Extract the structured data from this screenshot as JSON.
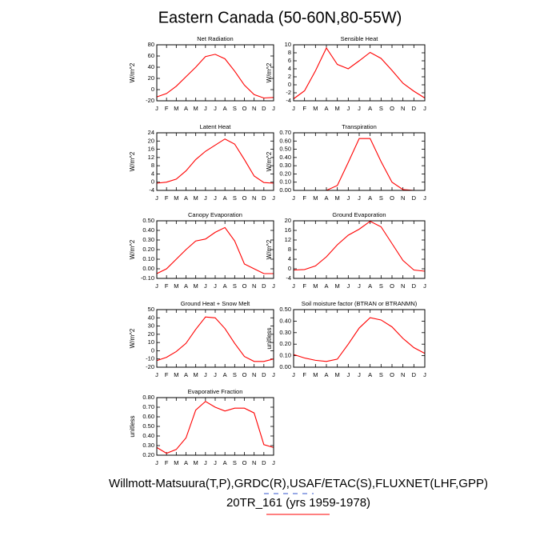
{
  "title": "Eastern Canada (50-60N,80-55W)",
  "footer": {
    "sources": "Willmott-Matsuura(T,P),GRDC(R),USAF/ETAC(S),FLUXNET(LHF,GPP)",
    "run": "20TR_161 (yrs 1959-1978)"
  },
  "chart_data": [
    {
      "type": "line",
      "title": "Net Radiation",
      "y_label": "W/m^2",
      "categories": [
        "J",
        "F",
        "M",
        "A",
        "M",
        "J",
        "J",
        "A",
        "S",
        "O",
        "N",
        "D",
        "J"
      ],
      "series": [
        {
          "color": "#ff0000",
          "values": [
            -13,
            -7,
            6,
            23,
            40,
            59,
            63,
            55,
            33,
            8,
            -9,
            -15,
            -14
          ]
        }
      ],
      "ylim": [
        -20,
        80
      ],
      "yticks": [
        -20,
        0,
        20,
        40,
        60,
        80
      ]
    },
    {
      "type": "line",
      "title": "Sensible Heat",
      "y_label": "W/m^2",
      "categories": [
        "J",
        "F",
        "M",
        "A",
        "M",
        "J",
        "J",
        "A",
        "S",
        "O",
        "N",
        "D",
        "J"
      ],
      "series": [
        {
          "color": "#ff0000",
          "values": [
            -3.5,
            -1.5,
            3.5,
            9.2,
            5.1,
            4.0,
            6.0,
            8.1,
            6.6,
            3.6,
            0.4,
            -1.6,
            -3.3
          ]
        }
      ],
      "ylim": [
        -4,
        10
      ],
      "yticks": [
        -4,
        -2,
        0,
        2,
        4,
        6,
        8,
        10
      ]
    },
    {
      "type": "line",
      "title": "Latent Heat",
      "y_label": "W/m^2",
      "categories": [
        "J",
        "F",
        "M",
        "A",
        "M",
        "J",
        "J",
        "A",
        "S",
        "O",
        "N",
        "D",
        "J"
      ],
      "series": [
        {
          "color": "#ff0000",
          "values": [
            -0.5,
            0,
            1.5,
            5.5,
            11,
            15,
            18,
            21,
            18.5,
            11,
            3,
            -0.2,
            -0.5
          ]
        }
      ],
      "ylim": [
        -4,
        24
      ],
      "yticks": [
        -4,
        0,
        4,
        8,
        12,
        16,
        20,
        24
      ]
    },
    {
      "type": "line",
      "title": "Transpiration",
      "y_label": "W/m^2",
      "categories": [
        "J",
        "F",
        "M",
        "A",
        "M",
        "J",
        "J",
        "A",
        "S",
        "O",
        "N",
        "D",
        "J"
      ],
      "series": [
        {
          "color": "#ff0000",
          "values": [
            0,
            0,
            0,
            0,
            0.06,
            0.34,
            0.63,
            0.63,
            0.35,
            0.1,
            0.01,
            0,
            0
          ]
        }
      ],
      "ylim": [
        0,
        0.7
      ],
      "yticks": [
        {
          "value": 0,
          "label": "0.00"
        },
        {
          "value": 0.1,
          "label": "0.10"
        },
        {
          "value": 0.2,
          "label": "0.20"
        },
        {
          "value": 0.3,
          "label": "0.30"
        },
        {
          "value": 0.4,
          "label": "0.40"
        },
        {
          "value": 0.5,
          "label": "0.50"
        },
        {
          "value": 0.6,
          "label": "0.60"
        },
        {
          "value": 0.7,
          "label": "0.70"
        }
      ]
    },
    {
      "type": "line",
      "title": "Canopy Evaporation",
      "y_label": "W/m^2",
      "categories": [
        "J",
        "F",
        "M",
        "A",
        "M",
        "J",
        "J",
        "A",
        "S",
        "O",
        "N",
        "D",
        "J"
      ],
      "series": [
        {
          "color": "#ff0000",
          "values": [
            -0.05,
            0.0,
            0.1,
            0.2,
            0.29,
            0.31,
            0.38,
            0.43,
            0.29,
            0.05,
            0.0,
            -0.05,
            -0.05
          ]
        }
      ],
      "ylim": [
        -0.1,
        0.5
      ],
      "yticks": [
        {
          "value": -0.1,
          "label": "-0.10"
        },
        {
          "value": 0,
          "label": "0.00"
        },
        {
          "value": 0.1,
          "label": "0.10"
        },
        {
          "value": 0.2,
          "label": "0.20"
        },
        {
          "value": 0.3,
          "label": "0.30"
        },
        {
          "value": 0.4,
          "label": "0.40"
        },
        {
          "value": 0.5,
          "label": "0.50"
        }
      ]
    },
    {
      "type": "line",
      "title": "Ground Evaporation",
      "y_label": "W/m^2",
      "categories": [
        "J",
        "F",
        "M",
        "A",
        "M",
        "J",
        "J",
        "A",
        "S",
        "O",
        "N",
        "D",
        "J"
      ],
      "series": [
        {
          "color": "#ff0000",
          "values": [
            -0.5,
            -0.3,
            1.2,
            5,
            10,
            14,
            16.5,
            19.8,
            17.5,
            10.5,
            3.5,
            -0.5,
            -1
          ]
        }
      ],
      "ylim": [
        -4,
        20
      ],
      "yticks": [
        -4,
        0,
        4,
        8,
        12,
        16,
        20
      ]
    },
    {
      "type": "line",
      "title": "Ground Heat + Snow Melt",
      "y_label": "W/m^2",
      "categories": [
        "J",
        "F",
        "M",
        "A",
        "M",
        "J",
        "J",
        "A",
        "S",
        "O",
        "N",
        "D",
        "J"
      ],
      "series": [
        {
          "color": "#ff0000",
          "values": [
            -12,
            -8,
            -1,
            9,
            26,
            41,
            40,
            27,
            9,
            -7,
            -13,
            -13,
            -10
          ]
        }
      ],
      "ylim": [
        -20,
        50
      ],
      "yticks": [
        -20,
        -10,
        0,
        10,
        20,
        30,
        40,
        50
      ]
    },
    {
      "type": "line",
      "title": "Soil moisture factor (BTRAN or BTRANMN)",
      "y_label": "unitless",
      "categories": [
        "J",
        "F",
        "M",
        "A",
        "M",
        "J",
        "J",
        "A",
        "S",
        "O",
        "N",
        "D",
        "J"
      ],
      "series": [
        {
          "color": "#ff0000",
          "values": [
            0.11,
            0.08,
            0.06,
            0.05,
            0.07,
            0.2,
            0.34,
            0.43,
            0.41,
            0.35,
            0.25,
            0.17,
            0.12
          ]
        }
      ],
      "ylim": [
        0,
        0.5
      ],
      "yticks": [
        {
          "value": 0,
          "label": "0.00"
        },
        {
          "value": 0.1,
          "label": "0.10"
        },
        {
          "value": 0.2,
          "label": "0.20"
        },
        {
          "value": 0.3,
          "label": "0.30"
        },
        {
          "value": 0.4,
          "label": "0.40"
        },
        {
          "value": 0.5,
          "label": "0.50"
        }
      ]
    },
    {
      "type": "line",
      "title": "Evaporative Fraction",
      "y_label": "unitless",
      "categories": [
        "J",
        "F",
        "M",
        "A",
        "M",
        "J",
        "J",
        "A",
        "S",
        "O",
        "N",
        "D",
        "J"
      ],
      "series": [
        {
          "color": "#ff0000",
          "values": [
            0.28,
            0.22,
            0.26,
            0.38,
            0.67,
            0.76,
            0.7,
            0.66,
            0.69,
            0.69,
            0.64,
            0.31,
            0.28
          ]
        }
      ],
      "ylim": [
        0.2,
        0.8
      ],
      "yticks": [
        {
          "value": 0.2,
          "label": "0.20"
        },
        {
          "value": 0.3,
          "label": "0.30"
        },
        {
          "value": 0.4,
          "label": "0.40"
        },
        {
          "value": 0.5,
          "label": "0.50"
        },
        {
          "value": 0.6,
          "label": "0.60"
        },
        {
          "value": 0.7,
          "label": "0.70"
        },
        {
          "value": 0.8,
          "label": "0.80"
        }
      ]
    }
  ]
}
